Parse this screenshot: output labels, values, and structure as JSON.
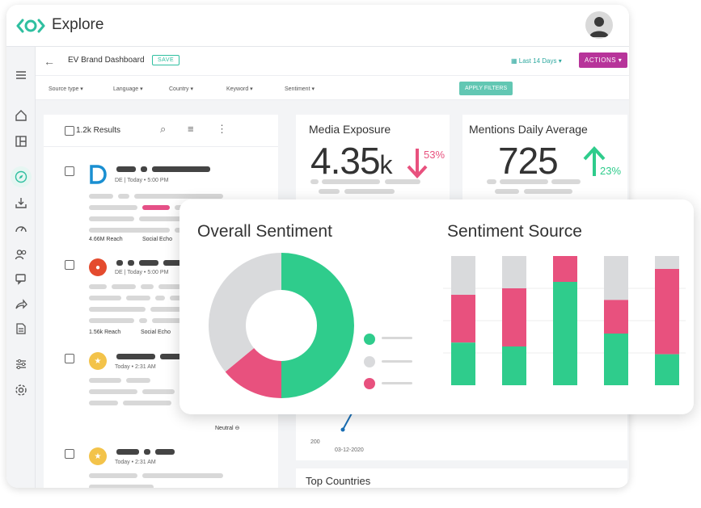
{
  "app": {
    "title": "Explore"
  },
  "colors": {
    "teal": "#2fbfa0",
    "green": "#2fcc8c",
    "pink": "#e8517e",
    "gray": "#d9dadc",
    "magenta": "#b7349a"
  },
  "dashboard": {
    "title": "EV Brand Dashboard",
    "save_label": "SAVE",
    "date_range": "Last 14 Days",
    "actions_label": "ACTIONS"
  },
  "filters": [
    {
      "label": "Source type"
    },
    {
      "label": "Language"
    },
    {
      "label": "Country"
    },
    {
      "label": "Keyword"
    },
    {
      "label": "Sentiment"
    }
  ],
  "apply_label": "APPLY FILTERS",
  "results": {
    "count": "1.2k Results",
    "items": [
      {
        "meta": "DE | Today • 5:00 PM",
        "reach": "4.66M Reach",
        "source": "Social Echo"
      },
      {
        "meta": "DE | Today • 5:00 PM",
        "reach": "1.56k Reach",
        "source": "Social Echo"
      },
      {
        "meta": "Today • 2:31 AM",
        "sentiment": "Neutral"
      },
      {
        "meta": "Today • 2:31 AM"
      }
    ]
  },
  "metrics": {
    "media_exposure": {
      "title": "Media Exposure",
      "value": "4.35",
      "unit": "k",
      "change": "53%",
      "direction": "down"
    },
    "mentions_daily": {
      "title": "Mentions Daily Average",
      "value": "725",
      "change": "23%",
      "direction": "up"
    }
  },
  "overall_sentiment": {
    "title": "Overall Sentiment",
    "slices": {
      "positive": 0.5,
      "negative": 0.14,
      "neutral": 0.36
    }
  },
  "sentiment_source": {
    "title": "Sentiment Source",
    "bars": [
      {
        "neutral": 0.3,
        "negative": 0.37,
        "positive": 0.33
      },
      {
        "neutral": 0.25,
        "negative": 0.45,
        "positive": 0.3
      },
      {
        "neutral": 0.0,
        "negative": 0.2,
        "positive": 0.8
      },
      {
        "neutral": 0.34,
        "negative": 0.26,
        "positive": 0.4
      },
      {
        "neutral": 0.1,
        "negative": 0.66,
        "positive": 0.24
      }
    ]
  },
  "trend": {
    "y_tick": "200",
    "x_tick": "03-12-2020"
  },
  "top_countries": {
    "title": "Top Countries"
  }
}
